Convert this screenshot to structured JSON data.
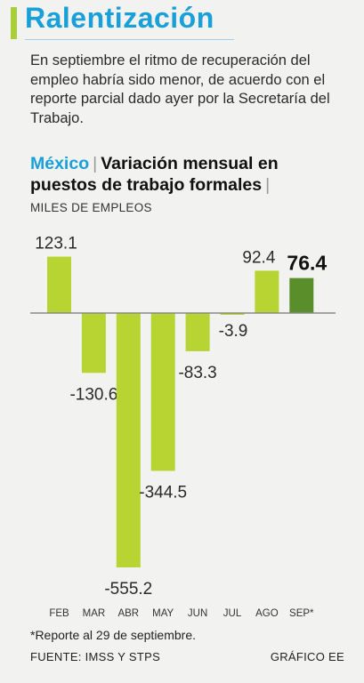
{
  "header": {
    "title": "Ralentización",
    "subtitle": "En septiembre el ritmo de recuperación del empleo habría sido menor, de acuerdo con el reporte parcial dado ayer por la Secretaría del Trabajo."
  },
  "chart_heading": {
    "country": "México",
    "title": "Variación mensual en puestos de trabajo formales",
    "units": "MILES DE EMPLEOS"
  },
  "chart_data": {
    "type": "bar",
    "categories": [
      "FEB",
      "MAR",
      "ABR",
      "MAY",
      "JUN",
      "JUL",
      "AGO",
      "SEP*"
    ],
    "values": [
      123.1,
      -130.6,
      -555.2,
      -344.5,
      -83.3,
      -3.9,
      92.4,
      76.4
    ],
    "data_labels": [
      "123.1",
      "-130.6",
      "-555.2",
      "-344.5",
      "-83.3",
      "-3.9",
      "92.4",
      "76.4"
    ],
    "highlight_index": 7,
    "ylim": [
      -555.2,
      123.1
    ],
    "colors": {
      "bar": "#b7d432",
      "highlight": "#5a8e2a",
      "axis": "#8a8a8a"
    }
  },
  "footer": {
    "note": "*Reporte al 29 de septiembre.",
    "source": "FUENTE: IMSS Y STPS",
    "credit": "GRÁFICO EE"
  }
}
